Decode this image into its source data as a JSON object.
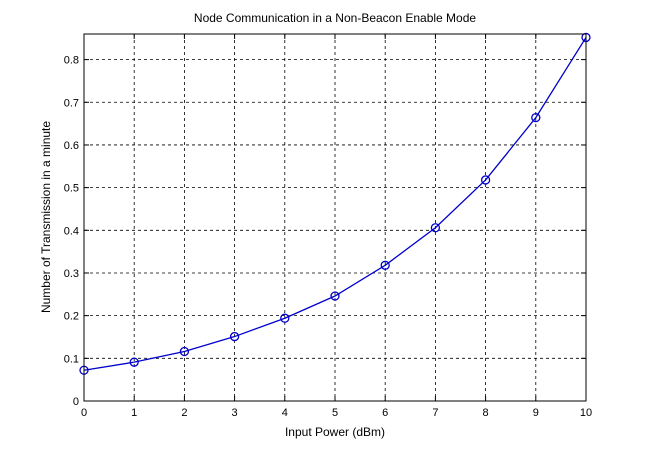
{
  "chart_data": {
    "type": "line",
    "title": "Node Communication in a Non-Beacon Enable Mode",
    "xlabel": "Input Power (dBm)",
    "ylabel": "Number of Transmission  in a minute",
    "xlim": [
      0,
      10
    ],
    "ylim": [
      0,
      0.86
    ],
    "xticks": [
      "0",
      "1",
      "2",
      "3",
      "4",
      "5",
      "6",
      "7",
      "8",
      "9",
      "10"
    ],
    "yticks": [
      "0",
      "0.1",
      "0.2",
      "0.3",
      "0.4",
      "0.5",
      "0.6",
      "0.7",
      "0.8"
    ],
    "grid": true,
    "legend": "none",
    "series": [
      {
        "color": "#0000cc",
        "marker": "circle",
        "x": [
          0,
          1,
          2,
          3,
          4,
          5,
          6,
          7,
          8,
          9,
          10
        ],
        "y": [
          0.072,
          0.091,
          0.116,
          0.151,
          0.194,
          0.246,
          0.318,
          0.406,
          0.518,
          0.664,
          0.852
        ]
      }
    ]
  }
}
